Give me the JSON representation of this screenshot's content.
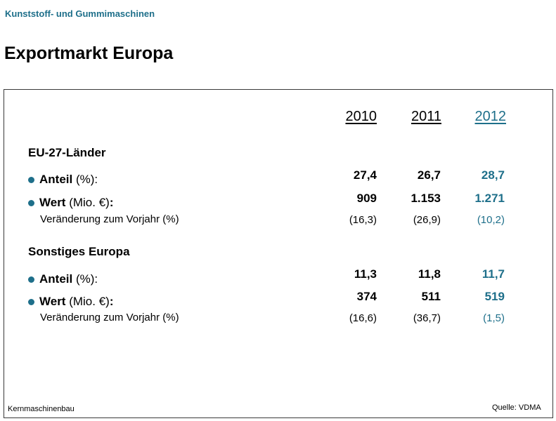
{
  "header": {
    "kicker": "Kunststoff- und Gummimaschinen",
    "title": "Exportmarkt Europa"
  },
  "table": {
    "years": [
      "2010",
      "2011",
      "2012"
    ],
    "sections": [
      {
        "title": "EU-27-Länder",
        "anteil_label_bold": "Anteil",
        "anteil_label_rest": " (%):",
        "anteil": [
          "27,4",
          "26,7",
          "28,7"
        ],
        "wert_label_bold": "Wert",
        "wert_label_mid": " (Mio. €)",
        "wert_label_end": ":",
        "wert": [
          "909",
          "1.153",
          "1.271"
        ],
        "change_label": "Veränderung zum Vorjahr (%)",
        "change": [
          "(16,3)",
          "(26,9)",
          "(10,2)"
        ]
      },
      {
        "title": "Sonstiges Europa",
        "anteil_label_bold": "Anteil",
        "anteil_label_rest": " (%):",
        "anteil": [
          "11,3",
          "11,8",
          "11,7"
        ],
        "wert_label_bold": "Wert",
        "wert_label_mid": " (Mio. €)",
        "wert_label_end": ":",
        "wert": [
          "374",
          "511",
          "519"
        ],
        "change_label": "Veränderung zum Vorjahr (%)",
        "change": [
          "(16,6)",
          "(36,7)",
          "(1,5)"
        ]
      }
    ]
  },
  "footer": {
    "left": "Kernmaschinenbau",
    "source": "Quelle: VDMA"
  },
  "colors": {
    "accent": "#1e6f8a"
  }
}
